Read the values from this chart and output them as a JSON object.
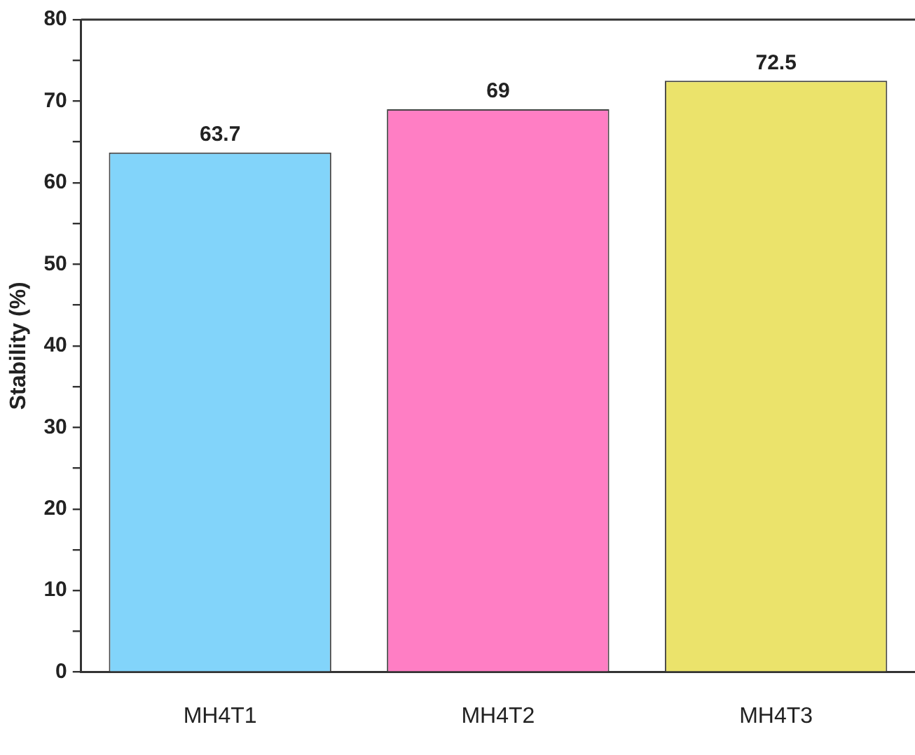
{
  "chart_data": {
    "type": "bar",
    "ylabel": "Stability (%)",
    "categories": [
      "MH4T1",
      "MH4T2",
      "MH4T3"
    ],
    "values": [
      63.7,
      69,
      72.5
    ],
    "colors": [
      "#82d4fa",
      "#ff7ec4",
      "#ebe36b"
    ],
    "ylim": [
      0,
      80
    ],
    "yticks": [
      0,
      {
        "value": 5,
        "label": null
      },
      10,
      {
        "value": 15,
        "label": null
      },
      20,
      {
        "value": 25,
        "label": null
      },
      30,
      {
        "value": 35,
        "label": null
      },
      40,
      {
        "value": 45,
        "label": null
      },
      50,
      {
        "value": 55,
        "label": null
      },
      60,
      {
        "value": 65,
        "label": null
      },
      70,
      {
        "value": 75,
        "label": null
      },
      80
    ],
    "data_labels": true,
    "grid": false,
    "legend": false
  }
}
